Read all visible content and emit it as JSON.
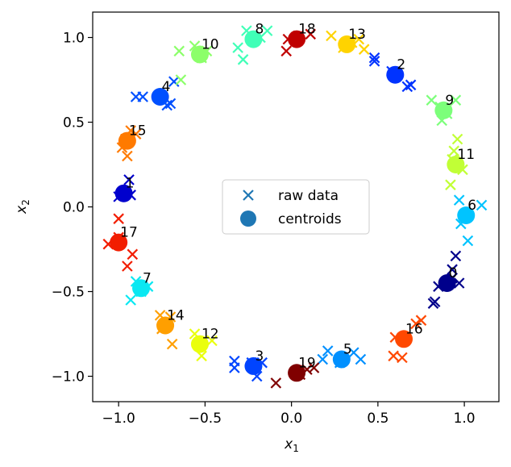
{
  "chart_data": {
    "type": "scatter",
    "title": "",
    "xlabel": "x",
    "xlabel_sub": "1",
    "ylabel": "x",
    "ylabel_sub": "2",
    "xlim": [
      -1.15,
      1.2
    ],
    "ylim": [
      -1.15,
      1.15
    ],
    "xticks": [
      -1.0,
      -0.5,
      0.0,
      0.5,
      1.0
    ],
    "xtick_labels": [
      "−1.0",
      "−0.5",
      "0.0",
      "0.5",
      "1.0"
    ],
    "yticks": [
      -1.0,
      -0.5,
      0.0,
      0.5,
      1.0
    ],
    "ytick_labels": [
      "−1.0",
      "−0.5",
      "0.0",
      "0.5",
      "1.0"
    ],
    "grid": false,
    "legend": {
      "placement": "center",
      "entries": [
        {
          "label": "raw data",
          "marker": "x",
          "color": "#1f77b4"
        },
        {
          "label": "centroids",
          "marker": "o",
          "color": "#1f77b4"
        }
      ]
    },
    "centroids": [
      {
        "label": "0",
        "x": 0.9,
        "y": -0.45,
        "color": "#00008b"
      },
      {
        "label": "1",
        "x": -0.97,
        "y": 0.08,
        "color": "#0000cd"
      },
      {
        "label": "2",
        "x": 0.6,
        "y": 0.78,
        "color": "#0033ff"
      },
      {
        "label": "3",
        "x": -0.22,
        "y": -0.94,
        "color": "#0044ff"
      },
      {
        "label": "4",
        "x": -0.76,
        "y": 0.65,
        "color": "#0050ff"
      },
      {
        "label": "5",
        "x": 0.29,
        "y": -0.9,
        "color": "#0090ff"
      },
      {
        "label": "6",
        "x": 1.01,
        "y": -0.05,
        "color": "#00c4ff"
      },
      {
        "label": "7",
        "x": -0.87,
        "y": -0.48,
        "color": "#0ae8f2"
      },
      {
        "label": "8",
        "x": -0.22,
        "y": 0.99,
        "color": "#40ffb7"
      },
      {
        "label": "9",
        "x": 0.88,
        "y": 0.57,
        "color": "#7cff7a"
      },
      {
        "label": "10",
        "x": -0.53,
        "y": 0.9,
        "color": "#8cff6a"
      },
      {
        "label": "11",
        "x": 0.95,
        "y": 0.25,
        "color": "#c1ff36"
      },
      {
        "label": "12",
        "x": -0.53,
        "y": -0.81,
        "color": "#eaff0d"
      },
      {
        "label": "13",
        "x": 0.32,
        "y": 0.96,
        "color": "#ffd300"
      },
      {
        "label": "14",
        "x": -0.73,
        "y": -0.7,
        "color": "#ff9f00"
      },
      {
        "label": "15",
        "x": -0.95,
        "y": 0.39,
        "color": "#ff7a00"
      },
      {
        "label": "16",
        "x": 0.65,
        "y": -0.78,
        "color": "#ff4800"
      },
      {
        "label": "17",
        "x": -1.0,
        "y": -0.21,
        "color": "#f21d00"
      },
      {
        "label": "18",
        "x": 0.03,
        "y": 0.99,
        "color": "#c00000"
      },
      {
        "label": "19",
        "x": 0.03,
        "y": -0.98,
        "color": "#800000"
      }
    ],
    "raw_data": [
      {
        "cluster": 0,
        "points": [
          [
            0.95,
            -0.29
          ],
          [
            0.93,
            -0.37
          ],
          [
            0.97,
            -0.45
          ],
          [
            0.85,
            -0.47
          ],
          [
            0.82,
            -0.57
          ],
          [
            0.83,
            -0.56
          ],
          [
            0.93,
            -0.42
          ]
        ]
      },
      {
        "cluster": 1,
        "points": [
          [
            -0.94,
            0.16
          ],
          [
            -1.0,
            0.06
          ],
          [
            -0.93,
            0.07
          ],
          [
            -0.97,
            0.09
          ]
        ]
      },
      {
        "cluster": 2,
        "points": [
          [
            0.48,
            0.88
          ],
          [
            0.48,
            0.86
          ],
          [
            0.67,
            0.71
          ],
          [
            0.69,
            0.72
          ],
          [
            0.58,
            0.8
          ]
        ]
      },
      {
        "cluster": 3,
        "points": [
          [
            -0.33,
            -0.91
          ],
          [
            -0.33,
            -0.95
          ],
          [
            -0.17,
            -0.92
          ],
          [
            -0.2,
            -1.0
          ],
          [
            -0.23,
            -0.92
          ]
        ]
      },
      {
        "cluster": 4,
        "points": [
          [
            -0.9,
            0.65
          ],
          [
            -0.86,
            0.65
          ],
          [
            -0.7,
            0.61
          ],
          [
            -0.68,
            0.74
          ],
          [
            -0.72,
            0.6
          ]
        ]
      },
      {
        "cluster": 5,
        "points": [
          [
            0.21,
            -0.85
          ],
          [
            0.18,
            -0.9
          ],
          [
            0.36,
            -0.86
          ],
          [
            0.4,
            -0.9
          ],
          [
            0.28,
            -0.92
          ]
        ]
      },
      {
        "cluster": 6,
        "points": [
          [
            0.97,
            0.04
          ],
          [
            1.1,
            0.01
          ],
          [
            1.02,
            -0.2
          ],
          [
            0.98,
            -0.1
          ],
          [
            1.0,
            -0.05
          ]
        ]
      },
      {
        "cluster": 7,
        "points": [
          [
            -0.93,
            -0.55
          ],
          [
            -0.83,
            -0.47
          ],
          [
            -0.9,
            -0.44
          ],
          [
            -0.87,
            -0.5
          ]
        ]
      },
      {
        "cluster": 8,
        "points": [
          [
            -0.31,
            0.94
          ],
          [
            -0.28,
            0.87
          ],
          [
            -0.14,
            1.04
          ],
          [
            -0.26,
            1.04
          ],
          [
            -0.18,
            1.0
          ]
        ]
      },
      {
        "cluster": 9,
        "points": [
          [
            0.81,
            0.63
          ],
          [
            0.87,
            0.51
          ],
          [
            0.95,
            0.63
          ],
          [
            0.9,
            0.55
          ],
          [
            0.86,
            0.59
          ]
        ]
      },
      {
        "cluster": 10,
        "points": [
          [
            -0.65,
            0.92
          ],
          [
            -0.64,
            0.75
          ],
          [
            -0.56,
            0.95
          ],
          [
            -0.49,
            0.92
          ],
          [
            -0.52,
            0.88
          ]
        ]
      },
      {
        "cluster": 11,
        "points": [
          [
            0.94,
            0.33
          ],
          [
            0.92,
            0.13
          ],
          [
            0.99,
            0.22
          ],
          [
            0.96,
            0.4
          ],
          [
            0.93,
            0.28
          ]
        ]
      },
      {
        "cluster": 12,
        "points": [
          [
            -0.56,
            -0.75
          ],
          [
            -0.52,
            -0.88
          ],
          [
            -0.46,
            -0.79
          ],
          [
            -0.53,
            -0.8
          ]
        ]
      },
      {
        "cluster": 13,
        "points": [
          [
            0.23,
            1.01
          ],
          [
            0.39,
            0.99
          ],
          [
            0.42,
            0.93
          ],
          [
            0.3,
            0.94
          ],
          [
            0.35,
            0.97
          ]
        ]
      },
      {
        "cluster": 14,
        "points": [
          [
            -0.76,
            -0.64
          ],
          [
            -0.69,
            -0.81
          ],
          [
            -0.7,
            -0.65
          ],
          [
            -0.75,
            -0.72
          ]
        ]
      },
      {
        "cluster": 15,
        "points": [
          [
            -0.98,
            0.35
          ],
          [
            -0.95,
            0.3
          ],
          [
            -0.93,
            0.45
          ],
          [
            -0.9,
            0.43
          ],
          [
            -0.96,
            0.4
          ]
        ]
      },
      {
        "cluster": 16,
        "points": [
          [
            0.6,
            -0.77
          ],
          [
            0.59,
            -0.88
          ],
          [
            0.64,
            -0.89
          ],
          [
            0.72,
            -0.69
          ],
          [
            0.75,
            -0.67
          ]
        ]
      },
      {
        "cluster": 17,
        "points": [
          [
            -1.06,
            -0.22
          ],
          [
            -1.0,
            -0.07
          ],
          [
            -0.92,
            -0.28
          ],
          [
            -0.95,
            -0.35
          ],
          [
            -1.0,
            -0.18
          ]
        ]
      },
      {
        "cluster": 18,
        "points": [
          [
            -0.03,
            0.92
          ],
          [
            0.04,
            1.01
          ],
          [
            0.11,
            1.02
          ],
          [
            -0.02,
            0.99
          ]
        ]
      },
      {
        "cluster": 19,
        "points": [
          [
            -0.09,
            -1.04
          ],
          [
            0.09,
            -0.96
          ],
          [
            0.13,
            -0.95
          ],
          [
            0.05,
            -0.99
          ]
        ]
      }
    ]
  }
}
